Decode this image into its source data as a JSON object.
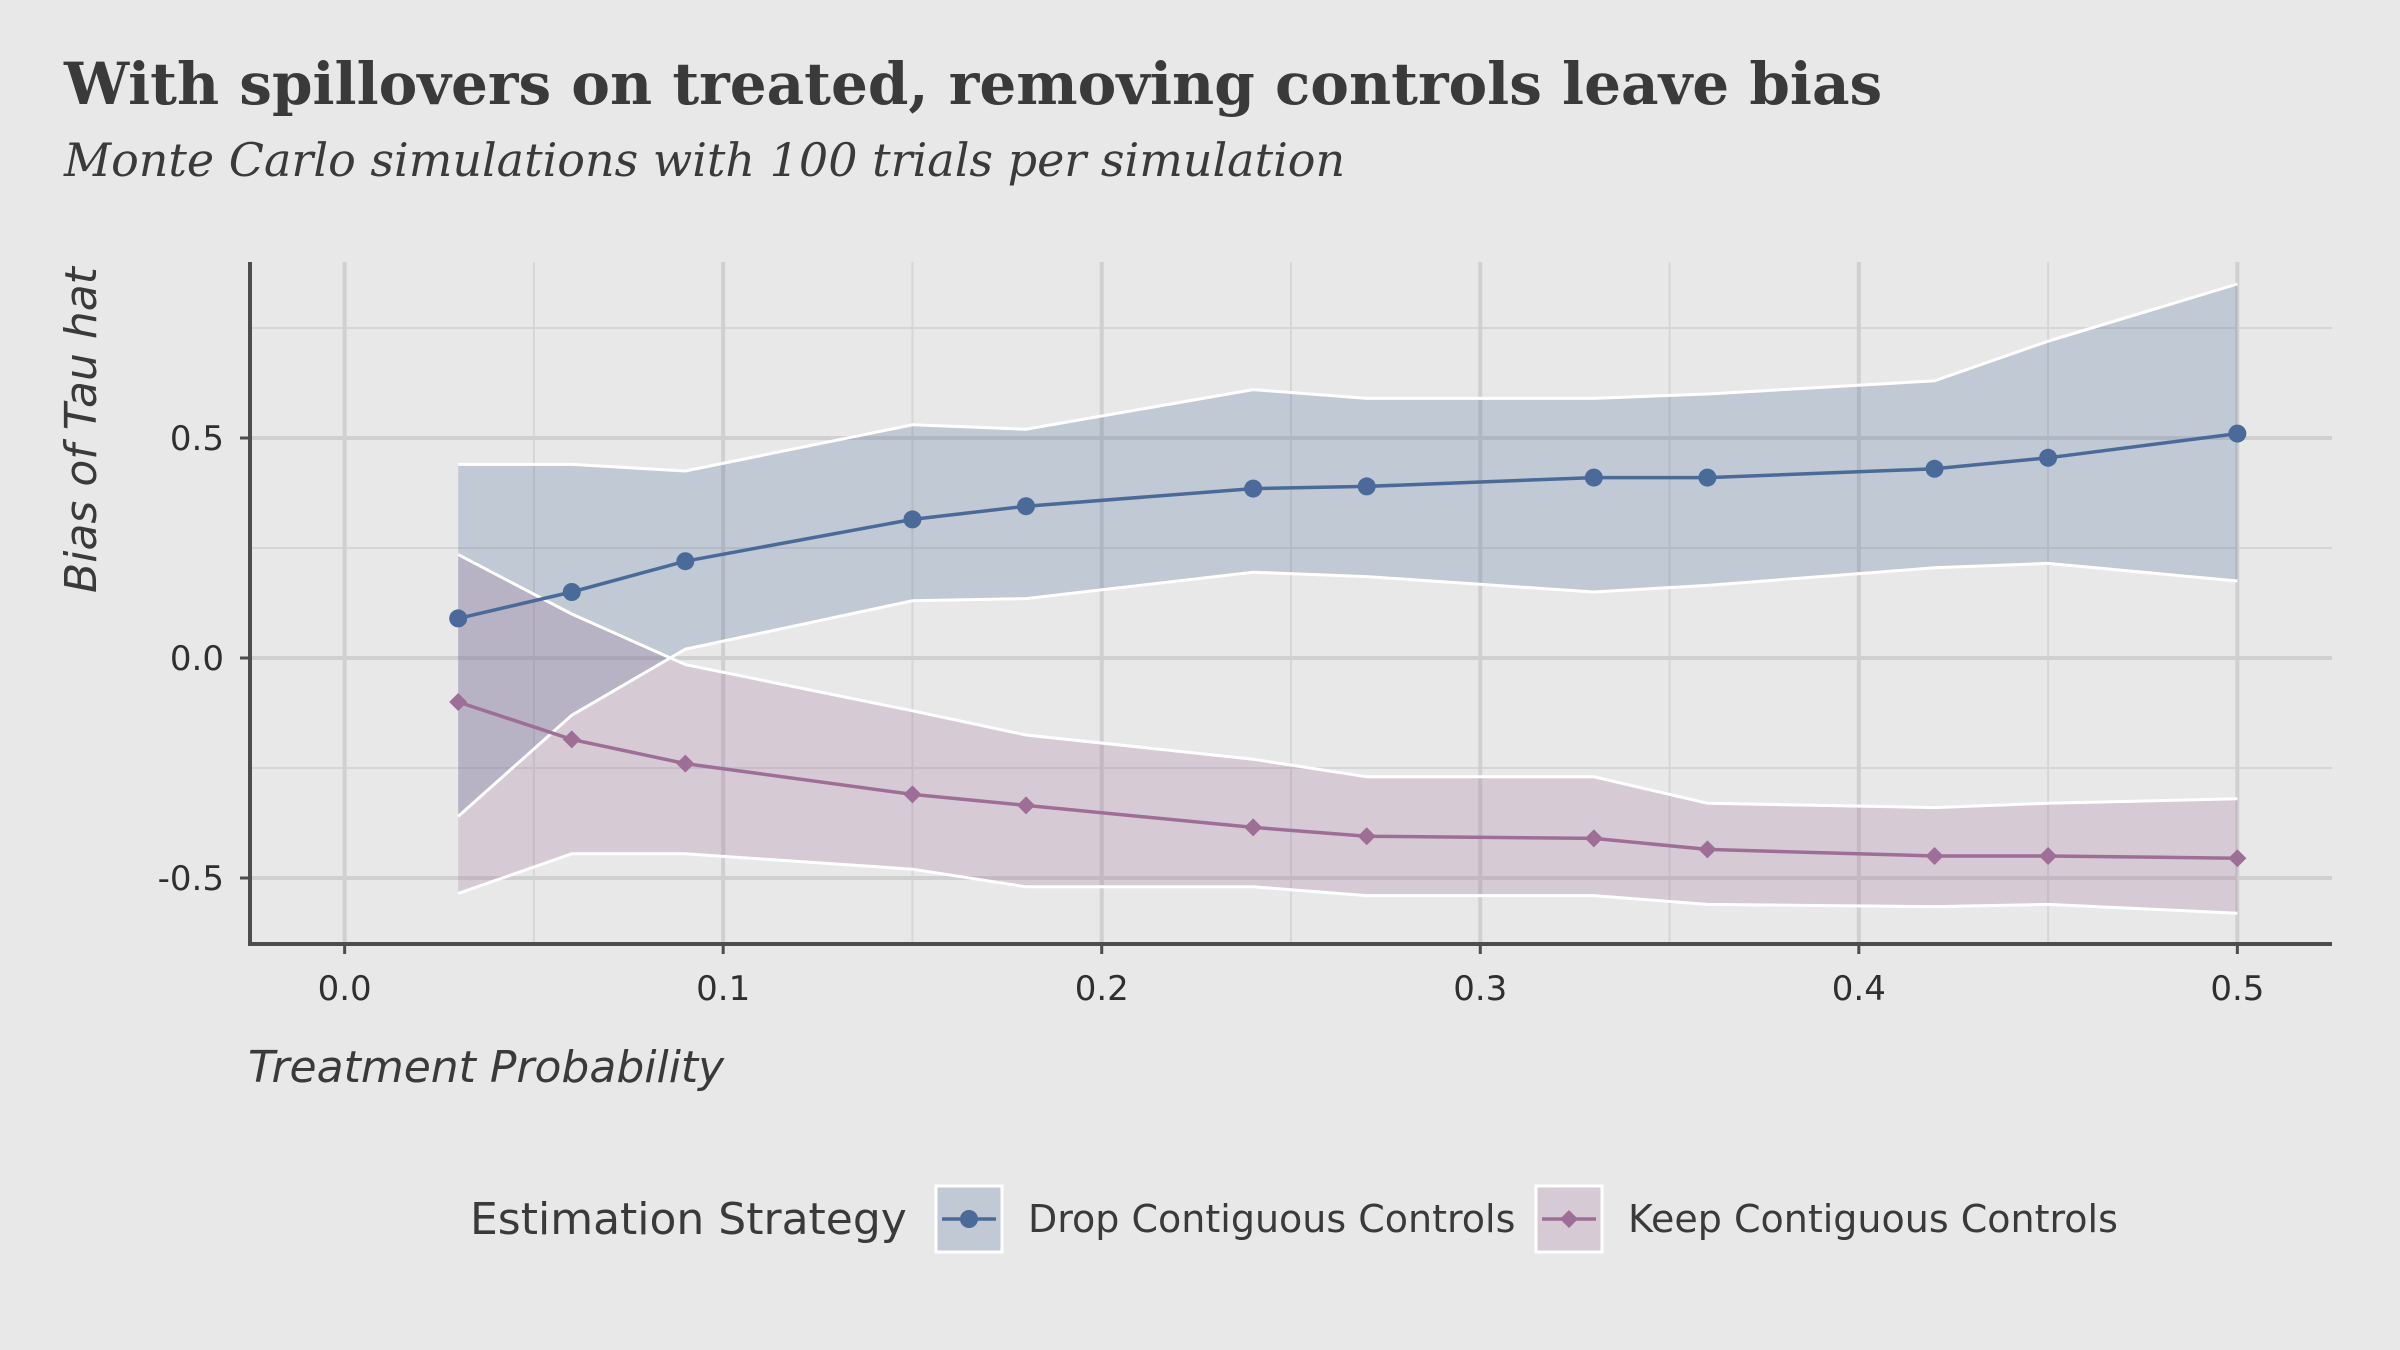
{
  "chart_data": {
    "type": "line",
    "title": "With spillovers on treated, removing controls leave bias",
    "subtitle": "Monte Carlo simulations with 100 trials per simulation",
    "xlabel": "Treatment Probability",
    "ylabel": "Bias of Tau hat",
    "xlim": [
      -0.025,
      0.525
    ],
    "ylim": [
      -0.65,
      0.9
    ],
    "x_ticks": [
      0.0,
      0.1,
      0.2,
      0.3,
      0.4,
      0.5
    ],
    "x_tick_labels": [
      "0.0",
      "0.1",
      "0.2",
      "0.3",
      "0.4",
      "0.5"
    ],
    "y_ticks": [
      -0.5,
      0.0,
      0.5
    ],
    "y_tick_labels": [
      "-0.5",
      "0.0",
      "0.5"
    ],
    "grid": true,
    "legend_title": "Estimation Strategy",
    "legend_position": "bottom",
    "series": [
      {
        "name": "Drop Contiguous Controls",
        "color": "#4a6a9a",
        "marker": "circle",
        "x": [
          0.03,
          0.06,
          0.09,
          0.15,
          0.18,
          0.24,
          0.27,
          0.33,
          0.36,
          0.42,
          0.45,
          0.5
        ],
        "y": [
          0.09,
          0.15,
          0.22,
          0.315,
          0.345,
          0.385,
          0.39,
          0.41,
          0.41,
          0.43,
          0.455,
          0.51
        ],
        "upper": [
          0.44,
          0.44,
          0.425,
          0.53,
          0.52,
          0.61,
          0.59,
          0.59,
          0.6,
          0.63,
          0.72,
          0.85
        ],
        "lower": [
          -0.36,
          -0.13,
          0.02,
          0.13,
          0.135,
          0.195,
          0.185,
          0.15,
          0.165,
          0.205,
          0.215,
          0.175
        ]
      },
      {
        "name": "Keep Contiguous Controls",
        "color": "#9e6e96",
        "marker": "diamond",
        "x": [
          0.03,
          0.06,
          0.09,
          0.15,
          0.18,
          0.24,
          0.27,
          0.33,
          0.36,
          0.42,
          0.45,
          0.5
        ],
        "y": [
          -0.1,
          -0.185,
          -0.24,
          -0.31,
          -0.335,
          -0.385,
          -0.405,
          -0.41,
          -0.435,
          -0.45,
          -0.45,
          -0.455
        ],
        "upper": [
          0.235,
          0.1,
          -0.015,
          -0.12,
          -0.175,
          -0.23,
          -0.27,
          -0.27,
          -0.33,
          -0.34,
          -0.33,
          -0.32
        ],
        "lower": [
          -0.535,
          -0.445,
          -0.445,
          -0.48,
          -0.52,
          -0.52,
          -0.54,
          -0.54,
          -0.56,
          -0.565,
          -0.56,
          -0.58
        ]
      }
    ]
  }
}
